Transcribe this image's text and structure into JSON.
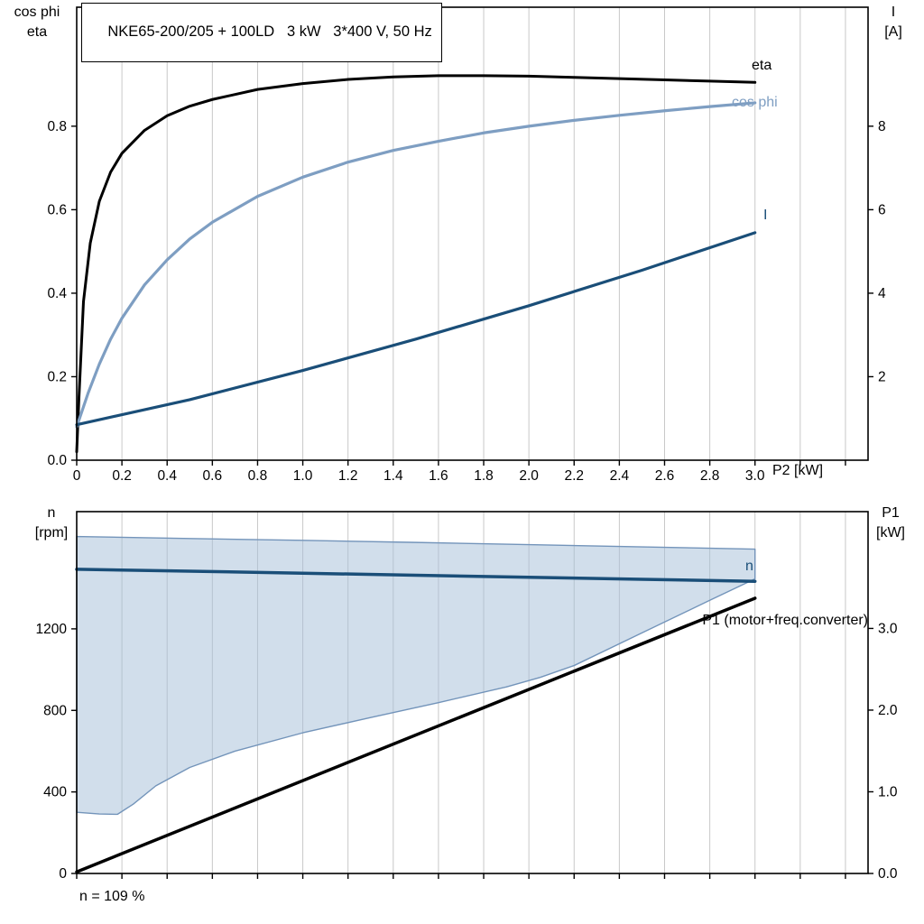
{
  "title_box": {
    "text": "NKE65-200/205 + 100LD   3 kW   3*400 V, 50 Hz"
  },
  "headers": {
    "top_left": [
      "cos phi",
      "eta"
    ],
    "top_right": [
      "I",
      "[A]"
    ],
    "bottom_left": [
      "n",
      "[rpm]"
    ],
    "bottom_right": [
      "P1",
      "[kW]"
    ],
    "x_axis_title": "P2 [kW]",
    "footnote": "n = 109 %"
  },
  "colors": {
    "grid": "#c8c8c8",
    "frame": "#000000",
    "eta": "#000000",
    "cos_phi": "#7e9ec2",
    "current": "#1a4e78",
    "speed": "#1a4e78",
    "p1": "#000000",
    "area_fill": "rgba(164,189,215,0.5)",
    "area_outline": "#7394ba"
  },
  "chart_data": [
    {
      "type": "line",
      "name": "motor-efficiency-chart",
      "title": "NKE65-200/205 + 100LD   3 kW   3*400 V, 50 Hz",
      "xlabel": "P2 [kW]",
      "xlim": [
        0,
        3.5
      ],
      "grid": "vertical",
      "legend": "inline-labels",
      "x_ticks": [
        0,
        0.2,
        0.4,
        0.6,
        0.8,
        1.0,
        1.2,
        1.4,
        1.6,
        1.8,
        2.0,
        2.2,
        2.4,
        2.6,
        2.8,
        3.0,
        3.2,
        3.4
      ],
      "x_tick_labels": [
        "0",
        "0.2",
        "0.4",
        "0.6",
        "0.8",
        "1.0",
        "1.2",
        "1.4",
        "1.6",
        "1.8",
        "2.0",
        "2.2",
        "2.4",
        "2.6",
        "2.8",
        "3.0"
      ],
      "left_axis": {
        "label": "cos phi / eta",
        "lim": [
          0,
          1.085
        ],
        "ticks": [
          0,
          0.2,
          0.4,
          0.6,
          0.8
        ],
        "tick_labels": [
          "0.0",
          "0.2",
          "0.4",
          "0.6",
          "0.8"
        ]
      },
      "right_axis": {
        "label": "I [A]",
        "lim": [
          0,
          10.85
        ],
        "ticks": [
          2,
          4,
          6,
          8
        ],
        "tick_labels": [
          "2",
          "4",
          "6",
          "8"
        ]
      },
      "series": [
        {
          "name": "eta",
          "axis": "left",
          "color": "#000000",
          "width": 3,
          "x": [
            0,
            0.01,
            0.03,
            0.06,
            0.1,
            0.15,
            0.2,
            0.3,
            0.4,
            0.5,
            0.6,
            0.8,
            1.0,
            1.2,
            1.4,
            1.6,
            1.8,
            2.0,
            2.2,
            2.4,
            2.6,
            2.8,
            3.0
          ],
          "y": [
            0.02,
            0.15,
            0.38,
            0.52,
            0.62,
            0.69,
            0.735,
            0.79,
            0.825,
            0.848,
            0.864,
            0.888,
            0.902,
            0.912,
            0.918,
            0.921,
            0.921,
            0.92,
            0.917,
            0.914,
            0.911,
            0.908,
            0.905
          ]
        },
        {
          "name": "cos phi",
          "axis": "left",
          "color": "#7e9ec2",
          "width": 3.2,
          "x": [
            0,
            0.05,
            0.1,
            0.15,
            0.2,
            0.3,
            0.4,
            0.5,
            0.6,
            0.8,
            1.0,
            1.2,
            1.4,
            1.6,
            1.8,
            2.0,
            2.2,
            2.4,
            2.6,
            2.8,
            3.0
          ],
          "y": [
            0.08,
            0.16,
            0.23,
            0.29,
            0.34,
            0.42,
            0.48,
            0.53,
            0.57,
            0.632,
            0.678,
            0.714,
            0.742,
            0.764,
            0.784,
            0.8,
            0.814,
            0.826,
            0.837,
            0.847,
            0.856
          ]
        },
        {
          "name": "I",
          "axis": "right",
          "color": "#1a4e78",
          "width": 3.2,
          "x": [
            0,
            0.5,
            1.0,
            1.5,
            2.0,
            2.5,
            3.0
          ],
          "y": [
            0.85,
            1.45,
            2.15,
            2.9,
            3.7,
            4.55,
            5.45
          ]
        }
      ]
    },
    {
      "type": "line",
      "name": "speed-power-chart",
      "xlabel": "",
      "xlim": [
        0,
        3.5
      ],
      "grid": "vertical",
      "legend": "inline-labels",
      "x_ticks": [
        0,
        0.2,
        0.4,
        0.6,
        0.8,
        1.0,
        1.2,
        1.4,
        1.6,
        1.8,
        2.0,
        2.2,
        2.4,
        2.6,
        2.8,
        3.0,
        3.2,
        3.4
      ],
      "x_tick_labels": null,
      "left_axis": {
        "label": "n [rpm]",
        "lim": [
          0,
          1775
        ],
        "ticks": [
          0,
          400,
          800,
          1200
        ],
        "tick_labels": [
          "0",
          "400",
          "800",
          "1200"
        ]
      },
      "right_axis": {
        "label": "P1 [kW]",
        "lim": [
          0,
          4.43
        ],
        "ticks": [
          0,
          1,
          2,
          3
        ],
        "tick_labels": [
          "0.0",
          "1.0",
          "2.0",
          "3.0"
        ]
      },
      "area": {
        "name": "speed-control-range",
        "fill": "rgba(164,189,215,0.5)",
        "outline": "#7394ba",
        "upper": {
          "x": [
            0,
            0.5,
            1.0,
            1.5,
            2.0,
            2.5,
            3.0
          ],
          "y": [
            1653,
            1643,
            1634,
            1624,
            1613,
            1602,
            1591
          ]
        },
        "lower": {
          "x": [
            0,
            0.1,
            0.18,
            0.25,
            0.35,
            0.5,
            0.7,
            1.0,
            1.3,
            1.6,
            1.9,
            2.05,
            2.2,
            2.5,
            2.8,
            3.0
          ],
          "y": [
            300,
            292,
            290,
            340,
            430,
            520,
            600,
            690,
            765,
            838,
            915,
            962,
            1020,
            1180,
            1340,
            1445
          ]
        }
      },
      "series": [
        {
          "name": "n",
          "axis": "left",
          "color": "#1a4e78",
          "width": 3.5,
          "x": [
            0,
            0.5,
            1.0,
            1.5,
            2.0,
            2.5,
            3.0
          ],
          "y": [
            1492,
            1483,
            1473,
            1463,
            1453,
            1443,
            1433
          ]
        },
        {
          "name": "P1 (motor+freq.converter)",
          "axis": "right",
          "color": "#000000",
          "width": 3.5,
          "x": [
            0,
            3.0
          ],
          "y": [
            0.02,
            3.37
          ]
        }
      ],
      "footnote": "n = 109 %"
    }
  ]
}
